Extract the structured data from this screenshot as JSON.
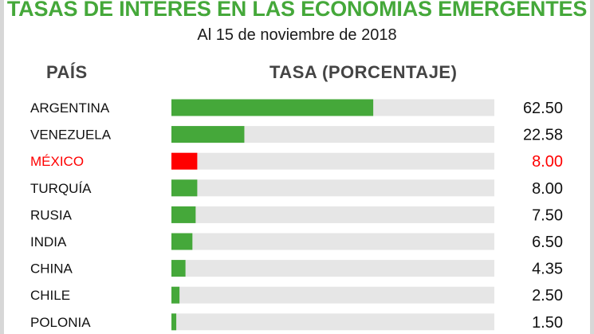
{
  "header": {
    "title": "TASAS DE INTERÉS EN LAS ECONOMÍAS EMERGENTES",
    "subtitle": "Al 15 de noviembre de 2018"
  },
  "columns": {
    "country": "PAÍS",
    "rate": "TASA (PORCENTAJE)"
  },
  "colors": {
    "bar": "#45a83a",
    "highlight": "#ff0000",
    "track": "#e6e6e6",
    "title": "#45a83a"
  },
  "chart_data": {
    "type": "bar",
    "orientation": "horizontal",
    "categories": [
      "ARGENTINA",
      "VENEZUELA",
      "MÉXICO",
      "TURQUÍA",
      "RUSIA",
      "INDIA",
      "CHINA",
      "CHILE",
      "POLONIA"
    ],
    "values": [
      62.5,
      22.58,
      8.0,
      8.0,
      7.5,
      6.5,
      4.35,
      2.5,
      1.5
    ],
    "value_labels": [
      "62.50",
      "22.58",
      "8.00",
      "8.00",
      "7.50",
      "6.50",
      "4.35",
      "2.50",
      "1.50"
    ],
    "highlighted": "MÉXICO",
    "xlim": [
      0,
      100
    ],
    "grid": false,
    "legend": "none"
  }
}
